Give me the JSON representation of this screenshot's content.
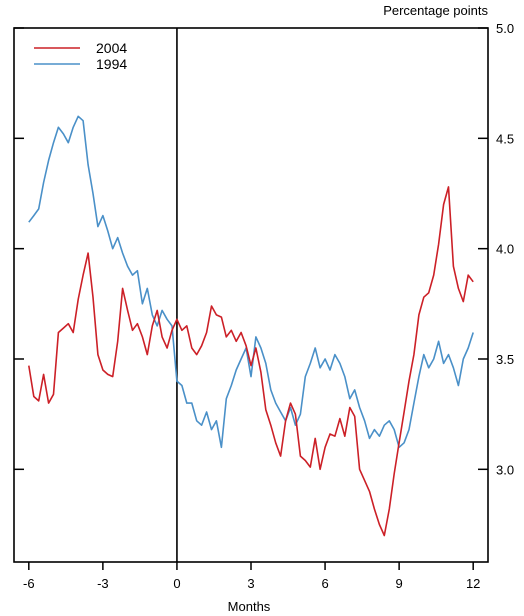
{
  "chart_data": {
    "type": "line",
    "title": "",
    "xlabel": "Months",
    "ylabel": "Percentage points",
    "xlim": [
      -6.6,
      12.6
    ],
    "ylim": [
      2.58,
      5.0
    ],
    "x_ticks": [
      -6,
      -3,
      0,
      3,
      6,
      9,
      12
    ],
    "x_tick_labels": [
      "-6",
      "-3",
      "0",
      "3",
      "6",
      "9",
      "12"
    ],
    "y_ticks": [
      3.0,
      3.5,
      4.0,
      4.5,
      5.0
    ],
    "y_tick_labels": [
      "3.0",
      "3.5",
      "4.0",
      "4.5",
      "5.0"
    ],
    "left_ticks": [
      3.0,
      3.5,
      4.0,
      4.5,
      5.0
    ],
    "vertical_line_at": 0,
    "grid": false,
    "legend_position": "top-left",
    "series": [
      {
        "name": "2004",
        "color": "#cc2027",
        "x": [
          -6.0,
          -5.8,
          -5.6,
          -5.4,
          -5.2,
          -5.0,
          -4.8,
          -4.6,
          -4.4,
          -4.2,
          -4.0,
          -3.8,
          -3.6,
          -3.4,
          -3.2,
          -3.0,
          -2.8,
          -2.6,
          -2.4,
          -2.2,
          -2.0,
          -1.8,
          -1.6,
          -1.4,
          -1.2,
          -1.0,
          -0.8,
          -0.6,
          -0.4,
          -0.2,
          0.0,
          0.2,
          0.4,
          0.6,
          0.8,
          1.0,
          1.2,
          1.4,
          1.6,
          1.8,
          2.0,
          2.2,
          2.4,
          2.6,
          2.8,
          3.0,
          3.2,
          3.4,
          3.6,
          3.8,
          4.0,
          4.2,
          4.4,
          4.6,
          4.8,
          5.0,
          5.2,
          5.4,
          5.6,
          5.8,
          6.0,
          6.2,
          6.4,
          6.6,
          6.8,
          7.0,
          7.2,
          7.4,
          7.6,
          7.8,
          8.0,
          8.2,
          8.4,
          8.6,
          8.8,
          9.0,
          9.2,
          9.4,
          9.6,
          9.8,
          10.0,
          10.2,
          10.4,
          10.6,
          10.8,
          11.0,
          11.2,
          11.4,
          11.6,
          11.8,
          12.0
        ],
        "values": [
          3.47,
          3.33,
          3.31,
          3.43,
          3.3,
          3.34,
          3.62,
          3.64,
          3.66,
          3.62,
          3.77,
          3.88,
          3.98,
          3.78,
          3.52,
          3.45,
          3.43,
          3.42,
          3.58,
          3.82,
          3.72,
          3.63,
          3.66,
          3.6,
          3.52,
          3.65,
          3.72,
          3.6,
          3.55,
          3.63,
          3.68,
          3.63,
          3.65,
          3.55,
          3.52,
          3.56,
          3.62,
          3.74,
          3.7,
          3.69,
          3.6,
          3.63,
          3.58,
          3.62,
          3.56,
          3.47,
          3.55,
          3.44,
          3.27,
          3.2,
          3.12,
          3.06,
          3.22,
          3.3,
          3.25,
          3.06,
          3.04,
          3.01,
          3.14,
          3.0,
          3.1,
          3.16,
          3.15,
          3.23,
          3.15,
          3.28,
          3.24,
          3.0,
          2.95,
          2.9,
          2.82,
          2.75,
          2.7,
          2.82,
          2.98,
          3.12,
          3.26,
          3.4,
          3.52,
          3.7,
          3.78,
          3.8,
          3.88,
          4.02,
          4.2,
          4.28,
          3.92,
          3.82,
          3.76,
          3.88,
          3.85
        ]
      },
      {
        "name": "1994",
        "color": "#4a90c8",
        "x": [
          -6.0,
          -5.8,
          -5.6,
          -5.4,
          -5.2,
          -5.0,
          -4.8,
          -4.6,
          -4.4,
          -4.2,
          -4.0,
          -3.8,
          -3.6,
          -3.4,
          -3.2,
          -3.0,
          -2.8,
          -2.6,
          -2.4,
          -2.2,
          -2.0,
          -1.8,
          -1.6,
          -1.4,
          -1.2,
          -1.0,
          -0.8,
          -0.6,
          -0.4,
          -0.2,
          0.0,
          0.2,
          0.4,
          0.6,
          0.8,
          1.0,
          1.2,
          1.4,
          1.6,
          1.8,
          2.0,
          2.2,
          2.4,
          2.6,
          2.8,
          3.0,
          3.2,
          3.4,
          3.6,
          3.8,
          4.0,
          4.2,
          4.4,
          4.6,
          4.8,
          5.0,
          5.2,
          5.4,
          5.6,
          5.8,
          6.0,
          6.2,
          6.4,
          6.6,
          6.8,
          7.0,
          7.2,
          7.4,
          7.6,
          7.8,
          8.0,
          8.2,
          8.4,
          8.6,
          8.8,
          9.0,
          9.2,
          9.4,
          9.6,
          9.8,
          10.0,
          10.2,
          10.4,
          10.6,
          10.8,
          11.0,
          11.2,
          11.4,
          11.6,
          11.8,
          12.0
        ],
        "values": [
          4.12,
          4.15,
          4.18,
          4.3,
          4.4,
          4.48,
          4.55,
          4.52,
          4.48,
          4.55,
          4.6,
          4.58,
          4.38,
          4.25,
          4.1,
          4.15,
          4.08,
          4.0,
          4.05,
          3.98,
          3.92,
          3.88,
          3.9,
          3.75,
          3.82,
          3.7,
          3.65,
          3.72,
          3.68,
          3.65,
          3.4,
          3.38,
          3.3,
          3.3,
          3.22,
          3.2,
          3.26,
          3.18,
          3.22,
          3.1,
          3.32,
          3.38,
          3.45,
          3.5,
          3.55,
          3.42,
          3.6,
          3.55,
          3.48,
          3.36,
          3.3,
          3.26,
          3.22,
          3.28,
          3.2,
          3.25,
          3.42,
          3.48,
          3.55,
          3.46,
          3.5,
          3.45,
          3.52,
          3.48,
          3.42,
          3.32,
          3.36,
          3.28,
          3.22,
          3.14,
          3.18,
          3.15,
          3.2,
          3.22,
          3.18,
          3.1,
          3.12,
          3.18,
          3.3,
          3.42,
          3.52,
          3.46,
          3.5,
          3.58,
          3.48,
          3.52,
          3.46,
          3.38,
          3.5,
          3.55,
          3.62
        ]
      }
    ]
  }
}
